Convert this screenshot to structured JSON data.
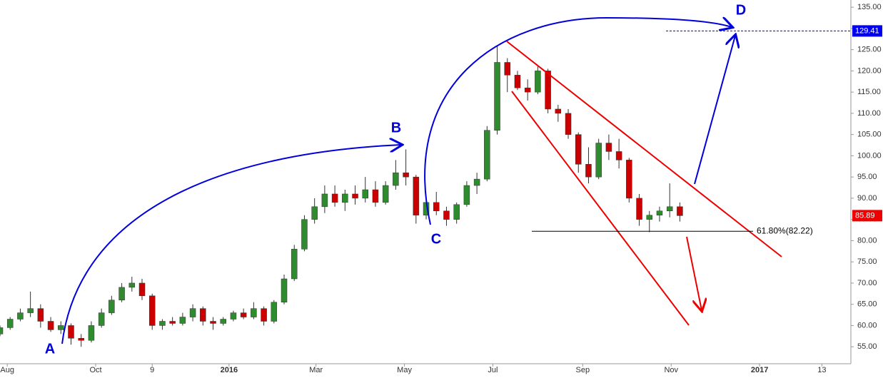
{
  "chart_data": {
    "type": "candlestick",
    "x": [
      "2015-07-27",
      "2015-08-03",
      "2015-08-10",
      "2015-08-17",
      "2015-08-24",
      "2015-08-31",
      "2015-09-07",
      "2015-09-14",
      "2015-09-21",
      "2015-09-28",
      "2015-10-05",
      "2015-10-12",
      "2015-10-19",
      "2015-10-26",
      "2015-11-02",
      "2015-11-09",
      "2015-11-16",
      "2015-11-23",
      "2015-11-30",
      "2015-12-07",
      "2015-12-14",
      "2015-12-21",
      "2015-12-28",
      "2016-01-04",
      "2016-01-11",
      "2016-01-18",
      "2016-01-25",
      "2016-02-01",
      "2016-02-08",
      "2016-02-15",
      "2016-02-22",
      "2016-02-29",
      "2016-03-07",
      "2016-03-14",
      "2016-03-21",
      "2016-03-28",
      "2016-04-04",
      "2016-04-11",
      "2016-04-18",
      "2016-04-25",
      "2016-05-02",
      "2016-05-09",
      "2016-05-16",
      "2016-05-23",
      "2016-05-30",
      "2016-06-06",
      "2016-06-13",
      "2016-06-20",
      "2016-06-27",
      "2016-07-04",
      "2016-07-11",
      "2016-07-18",
      "2016-07-25",
      "2016-08-01",
      "2016-08-08",
      "2016-08-15",
      "2016-08-22",
      "2016-08-29",
      "2016-09-05",
      "2016-09-12",
      "2016-09-19",
      "2016-09-26",
      "2016-10-03",
      "2016-10-10",
      "2016-10-17",
      "2016-10-24",
      "2016-10-31",
      "2016-11-07"
    ],
    "open": [
      58,
      59.5,
      61.5,
      63,
      64,
      61,
      59,
      60,
      57,
      56.5,
      60,
      63,
      66,
      69,
      70,
      67,
      60,
      61,
      60.5,
      62,
      64,
      61,
      60.5,
      61.5,
      63,
      62,
      64,
      61,
      65.5,
      71,
      78,
      85,
      88,
      91,
      89,
      91,
      90,
      92,
      89,
      93,
      96,
      95,
      86,
      89,
      87,
      85,
      88.5,
      93,
      94.5,
      106,
      122,
      119,
      116,
      115,
      120,
      111,
      110,
      105,
      98,
      95,
      103,
      101,
      99,
      90,
      85,
      86,
      87,
      88
    ],
    "high": [
      60,
      62,
      64,
      68,
      65,
      62,
      61,
      60.5,
      58,
      61,
      64,
      67,
      70,
      71.5,
      71,
      67.5,
      61.5,
      62,
      63,
      65,
      64.5,
      62,
      62,
      63.5,
      64,
      65.5,
      64.5,
      66,
      72,
      79,
      86,
      90,
      93,
      93,
      92,
      93,
      95,
      94,
      94,
      99,
      101.5,
      95.5,
      90,
      91.5,
      88,
      89,
      94,
      96,
      107,
      126,
      123,
      120,
      118,
      121,
      120.5,
      112,
      111,
      105.5,
      102,
      104,
      105,
      104,
      99.5,
      91,
      87,
      88,
      93.5,
      89
    ],
    "low": [
      57.5,
      59,
      61,
      62,
      59.5,
      58.5,
      58,
      55.5,
      55,
      56,
      59.5,
      62.5,
      65.5,
      68,
      66,
      59,
      59,
      60,
      60,
      61,
      60,
      59,
      60,
      61,
      61.5,
      61.5,
      60,
      60.5,
      65,
      70.5,
      77.5,
      84,
      86.5,
      88,
      87,
      88.5,
      89,
      88,
      88.5,
      92,
      93,
      84,
      85,
      86,
      83.5,
      84,
      88,
      91,
      94,
      105,
      115,
      115.5,
      113,
      114.5,
      110,
      108,
      104,
      96,
      93.5,
      94.5,
      99,
      97,
      89,
      83.5,
      82,
      84.5,
      85.5,
      84.5
    ],
    "close": [
      59.5,
      61.5,
      63,
      64,
      61,
      59,
      60,
      57,
      56.5,
      60,
      63,
      66,
      69,
      70,
      67,
      60,
      61,
      60.5,
      62,
      64,
      61,
      60.5,
      61.5,
      63,
      62,
      64,
      61,
      65.5,
      71,
      78,
      85,
      88,
      91,
      89,
      91,
      90,
      92,
      89,
      93,
      96,
      95,
      86,
      89,
      87,
      85,
      88.5,
      93,
      94.5,
      106,
      122,
      119,
      116,
      115,
      120,
      111,
      110,
      105,
      98,
      95,
      103,
      101,
      99,
      90,
      85,
      86,
      87,
      88,
      85.89
    ],
    "up_color": "#2e8b2e",
    "down_color": "#cc0000",
    "xlim": [
      "2015-07-27",
      "2017-03-04"
    ],
    "xticks": [
      {
        "value": "2015-08-01",
        "label": "Aug"
      },
      {
        "value": "2015-10-01",
        "label": "Oct"
      },
      {
        "value": "2015-11-09",
        "label": "9"
      },
      {
        "value": "2016-01-01",
        "label": "2016"
      },
      {
        "value": "2016-03-01",
        "label": "Mar"
      },
      {
        "value": "2016-05-01",
        "label": "May"
      },
      {
        "value": "2016-07-01",
        "label": "Jul"
      },
      {
        "value": "2016-09-01",
        "label": "Sep"
      },
      {
        "value": "2016-11-01",
        "label": "Nov"
      },
      {
        "value": "2017-01-01",
        "label": "2017"
      },
      {
        "value": "2017-02-13",
        "label": "13"
      }
    ],
    "ylim": [
      51,
      136.7
    ],
    "yticks": [
      {
        "value": 55,
        "label": "55.00"
      },
      {
        "value": 60,
        "label": "60.00"
      },
      {
        "value": 65,
        "label": "65.00"
      },
      {
        "value": 70,
        "label": "70.00"
      },
      {
        "value": 75,
        "label": "75.00"
      },
      {
        "value": 80,
        "label": "80.00"
      },
      {
        "value": 85,
        "label": "85.00"
      },
      {
        "value": 90,
        "label": "90.00"
      },
      {
        "value": 95,
        "label": "95.00"
      },
      {
        "value": 100,
        "label": "100.00"
      },
      {
        "value": 105,
        "label": "105.00"
      },
      {
        "value": 110,
        "label": "110.00"
      },
      {
        "value": 115,
        "label": "115.00"
      },
      {
        "value": 120,
        "label": "120.00"
      },
      {
        "value": 125,
        "label": "125.00"
      },
      {
        "value": 130,
        "label": "130.00"
      },
      {
        "value": 135,
        "label": "135.00"
      }
    ],
    "price_labels": [
      {
        "value": 129.41,
        "color": "#0000ee"
      },
      {
        "value": 85.89,
        "color": "#ee0000"
      }
    ],
    "fib_level": {
      "value": 82.22,
      "label": "61.80%(82.22)"
    },
    "annotations": [
      "A",
      "B",
      "C",
      "D"
    ]
  }
}
